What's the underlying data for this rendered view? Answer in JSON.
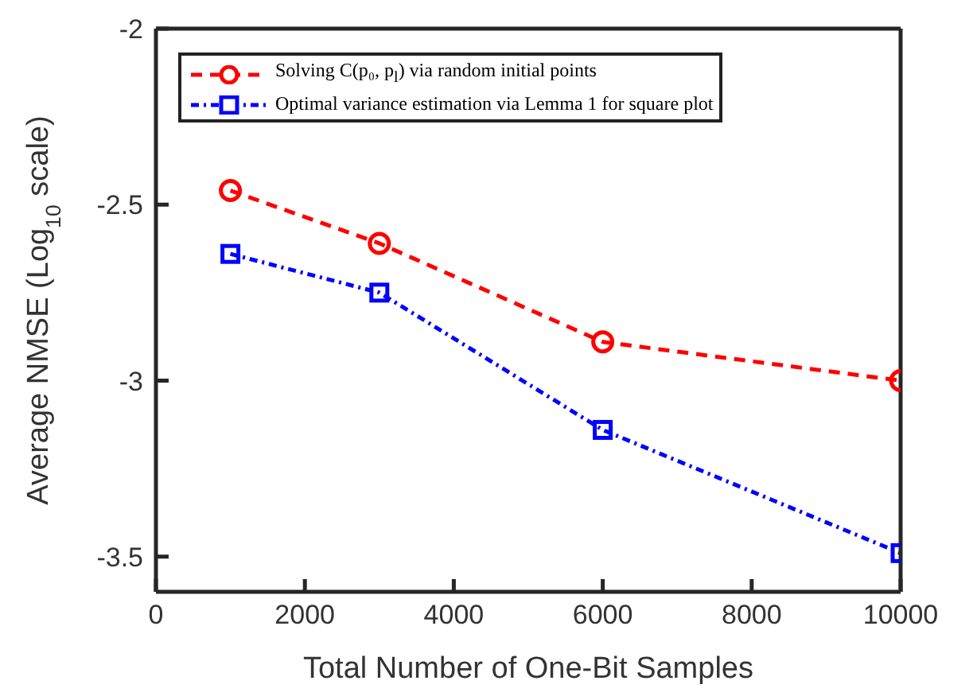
{
  "chart_data": {
    "type": "line",
    "xlabel": "Total Number of One-Bit Samples",
    "ylabel": "Average NMSE (Log$_{10}$ scale)",
    "x": [
      1000,
      3000,
      6000,
      10000
    ],
    "series": [
      {
        "name": "Solving C(p₀, p$_{l}$) via random initial points",
        "color": "#ff0000",
        "values": [
          -2.46,
          -2.61,
          -2.89,
          -3.0
        ],
        "marker": "circle",
        "line_style": "dashed"
      },
      {
        "name": "Optimal variance estimation via Lemma 1 for square plot",
        "color": "#0000ff",
        "values": [
          -2.64,
          -2.75,
          -3.14,
          -3.49
        ],
        "marker": "square",
        "line_style": "dotted"
      }
    ],
    "xlim": [
      0,
      10000
    ],
    "xticks": [
      0,
      2000,
      4000,
      6000,
      8000,
      10000
    ],
    "ylim": [
      -3.6,
      -2
    ],
    "yticks": [
      -3.5,
      -3,
      -2.5,
      -2
    ],
    "grid": false,
    "legend": "top"
  }
}
